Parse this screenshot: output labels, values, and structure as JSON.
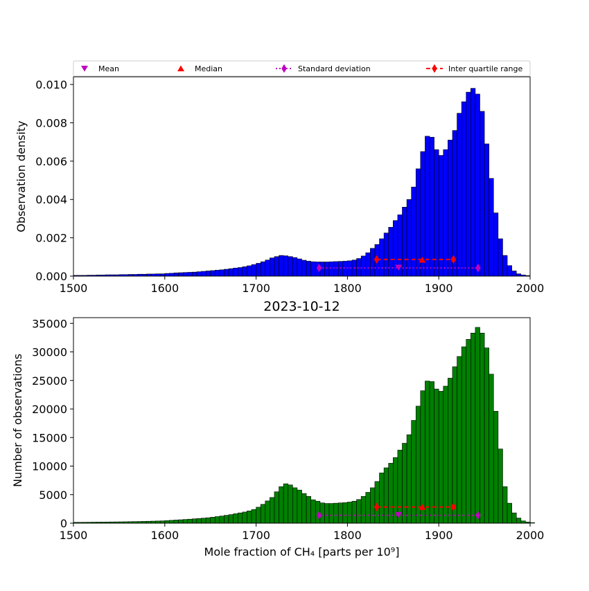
{
  "chart_data": [
    {
      "type": "bar",
      "title": "",
      "xlabel": "",
      "ylabel": "Observation density",
      "xlim": [
        1500,
        2000
      ],
      "ylim": [
        0,
        0.0104
      ],
      "bar_color": "#0000ff",
      "edge_color": "#000000",
      "xticks": [
        {
          "value": 1500,
          "label": "1500"
        },
        {
          "value": 1600,
          "label": "1600"
        },
        {
          "value": 1700,
          "label": "1700"
        },
        {
          "value": 1800,
          "label": "1800"
        },
        {
          "value": 1900,
          "label": "1900"
        },
        {
          "value": 2000,
          "label": "2000"
        }
      ],
      "yticks": [
        {
          "value": 0,
          "label": "0.000"
        },
        {
          "value": 0.002,
          "label": "0.002"
        },
        {
          "value": 0.004,
          "label": "0.004"
        },
        {
          "value": 0.006,
          "label": "0.006"
        },
        {
          "value": 0.008,
          "label": "0.008"
        },
        {
          "value": 0.01,
          "label": "0.010"
        }
      ],
      "bin_start": 1500,
      "bin_width": 5,
      "values": [
        4e-05,
        4e-05,
        4e-05,
        5e-05,
        5e-05,
        6e-05,
        6e-05,
        7e-05,
        7e-05,
        7e-05,
        8e-05,
        8e-05,
        9e-05,
        9e-05,
        0.0001,
        0.0001,
        0.00011,
        0.00011,
        0.00012,
        0.00012,
        0.00014,
        0.00015,
        0.00017,
        0.00018,
        0.00019,
        0.0002,
        0.00021,
        0.00023,
        0.00025,
        0.00027,
        0.00029,
        0.00031,
        0.00033,
        0.00036,
        0.00039,
        0.00042,
        0.00045,
        0.00049,
        0.00054,
        0.0006,
        0.00067,
        0.00075,
        0.00084,
        0.00095,
        0.00102,
        0.00108,
        0.00106,
        0.00102,
        0.00097,
        0.0009,
        0.00083,
        0.00078,
        0.00075,
        0.00074,
        0.00074,
        0.00074,
        0.00075,
        0.00076,
        0.00077,
        0.00078,
        0.0008,
        0.00084,
        0.00092,
        0.00105,
        0.00122,
        0.00145,
        0.00165,
        0.00195,
        0.00225,
        0.00255,
        0.0029,
        0.0032,
        0.0036,
        0.004,
        0.00465,
        0.0056,
        0.0065,
        0.0073,
        0.00725,
        0.0066,
        0.0063,
        0.0066,
        0.0071,
        0.0076,
        0.0085,
        0.0091,
        0.0096,
        0.0098,
        0.0095,
        0.0086,
        0.0069,
        0.0051,
        0.0033,
        0.00195,
        0.00108,
        0.00055,
        0.00027,
        0.00012,
        6e-05,
        3e-05
      ],
      "legend": [
        {
          "marker": "triangle-down",
          "color": "#bf00bf",
          "label": "Mean"
        },
        {
          "marker": "triangle-up",
          "color": "#ff0000",
          "label": "Median"
        },
        {
          "marker": "diamond",
          "color": "#bf00bf",
          "line": "dotted",
          "label": "Standard deviation"
        },
        {
          "marker": "diamond",
          "color": "#ff0000",
          "line": "dashed",
          "label": "Inter quartile range"
        }
      ],
      "legend_placement": "top",
      "stats": {
        "mean": {
          "x": 1856,
          "y": 0.00045
        },
        "median": {
          "x": 1882,
          "y": 0.00085
        },
        "std_range": {
          "x": [
            1769,
            1943
          ],
          "y": 0.00043
        },
        "iqr_range": {
          "x": [
            1832,
            1916
          ],
          "y": 0.00087
        }
      }
    },
    {
      "type": "bar",
      "title": "2023-10-12",
      "xlabel": "Mole fraction of CH₄ [parts per 10⁹]",
      "ylabel": "Number of observations",
      "xlim": [
        1500,
        2000
      ],
      "ylim": [
        0,
        36000
      ],
      "bar_color": "#008000",
      "edge_color": "#000000",
      "xticks": [
        {
          "value": 1500,
          "label": "1500"
        },
        {
          "value": 1600,
          "label": "1600"
        },
        {
          "value": 1700,
          "label": "1700"
        },
        {
          "value": 1800,
          "label": "1800"
        },
        {
          "value": 1900,
          "label": "1900"
        },
        {
          "value": 2000,
          "label": "2000"
        }
      ],
      "yticks": [
        {
          "value": 0,
          "label": "0"
        },
        {
          "value": 5000,
          "label": "5000"
        },
        {
          "value": 10000,
          "label": "10000"
        },
        {
          "value": 15000,
          "label": "15000"
        },
        {
          "value": 20000,
          "label": "20000"
        },
        {
          "value": 25000,
          "label": "25000"
        },
        {
          "value": 30000,
          "label": "30000"
        },
        {
          "value": 35000,
          "label": "35000"
        }
      ],
      "bin_start": 1500,
      "bin_width": 5,
      "values": [
        150,
        150,
        160,
        170,
        180,
        190,
        200,
        210,
        220,
        230,
        240,
        250,
        270,
        280,
        300,
        320,
        340,
        360,
        380,
        400,
        450,
        500,
        550,
        600,
        650,
        700,
        760,
        820,
        880,
        950,
        1050,
        1150,
        1250,
        1380,
        1500,
        1650,
        1800,
        1950,
        2150,
        2400,
        2800,
        3300,
        3900,
        4500,
        5500,
        6400,
        6900,
        6700,
        6200,
        5800,
        5200,
        4700,
        4100,
        3850,
        3550,
        3450,
        3450,
        3500,
        3550,
        3600,
        3700,
        3850,
        4150,
        4700,
        5400,
        6200,
        7300,
        8800,
        9700,
        10500,
        11500,
        12800,
        14000,
        15500,
        18000,
        20500,
        23200,
        24900,
        24800,
        23500,
        23100,
        24000,
        25400,
        27400,
        29200,
        30900,
        32200,
        33300,
        34300,
        33300,
        30700,
        26100,
        19600,
        13000,
        6400,
        3500,
        1800,
        900,
        400,
        200,
        100
      ],
      "legend": [],
      "stats": {
        "mean": {
          "x": 1856,
          "y": 1480
        },
        "median": {
          "x": 1882,
          "y": 2800
        },
        "std_range": {
          "x": [
            1769,
            1943
          ],
          "y": 1380
        },
        "iqr_range": {
          "x": [
            1832,
            1916
          ],
          "y": 2830
        }
      }
    }
  ]
}
